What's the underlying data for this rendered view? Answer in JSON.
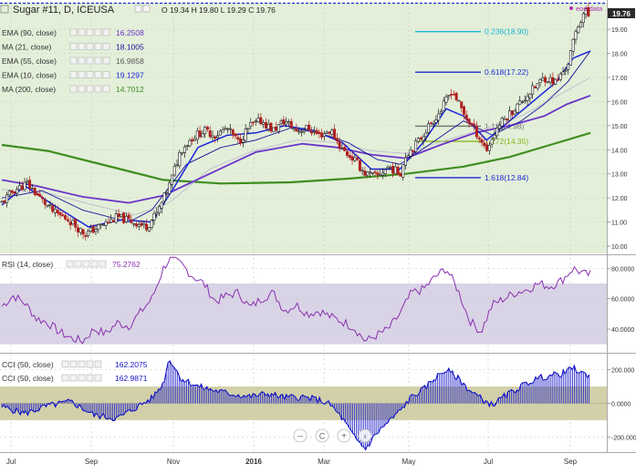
{
  "header": {
    "symbol_title": "Sugar #11, D, ICEUSA",
    "ohlc": "O 19.34  H 19.80  L 19.29  C 19.76",
    "eod_label": "eod data",
    "last_price": "19.76"
  },
  "colors": {
    "price_bg": "#e3efd9",
    "osc_bg": "#ffffff",
    "rsi_band": "#d9d3e6",
    "cci_band": "#d2d0a8",
    "ema90": "#6b35c9",
    "ma21": "#15149b",
    "ema55": "#c2bfcd",
    "ema10": "#1a25d8",
    "ma200": "#3f8e1f",
    "rsi_line": "#8a31b0",
    "cci_line": "#1414c8",
    "candle_up": "#1a1a1a",
    "candle_down": "#b02020",
    "fib_blue": "#1c2bd4",
    "fib_cyan": "#1cb3d4",
    "fib_gray": "#7a7a7a",
    "fib_lime": "#86b61d",
    "last_price_bg": "#2a2a2a"
  },
  "indicators": [
    {
      "name": "EMA (90, close)",
      "value": "16.2508",
      "color": "#6b35c9"
    },
    {
      "name": "MA (21, close)",
      "value": "18.1005",
      "color": "#15149b"
    },
    {
      "name": "EMA (55, close)",
      "value": "16.9858",
      "color": "#5a5a5a"
    },
    {
      "name": "EMA (10, close)",
      "value": "19.1297",
      "color": "#1a25d8"
    },
    {
      "name": "MA (200, close)",
      "value": "14.7012",
      "color": "#3f8e1f"
    }
  ],
  "rsi_panel": {
    "name": "RSI (14, close)",
    "value": "75.2762"
  },
  "cci_panel": [
    {
      "name": "CCI (50, close)",
      "value": "162.2075"
    },
    {
      "name": "CCI (50, close)",
      "value": "162.9871"
    }
  ],
  "zoom_buttons": [
    "–",
    "C",
    "+",
    "›"
  ],
  "chart_data": [
    {
      "type": "line",
      "ylim": [
        9.7,
        20.1
      ],
      "x": [
        "Jul",
        "Sep",
        "Nov",
        "2016",
        "Mar",
        "May",
        "Jul",
        "Sep"
      ],
      "y_ticks": [
        10,
        11,
        12,
        13,
        14,
        15,
        16,
        17,
        18,
        19
      ],
      "y_tick_labels": [
        "10.00",
        "11.00",
        "12.00",
        "13.00",
        "14.00",
        "15.00",
        "16.00",
        "17.00",
        "18.00",
        "19.00"
      ],
      "price_path": [
        [
          0,
          11.8
        ],
        [
          10,
          12.3
        ],
        [
          22,
          12.6
        ],
        [
          33,
          12.0
        ],
        [
          45,
          11.4
        ],
        [
          58,
          11.1
        ],
        [
          72,
          10.5
        ],
        [
          88,
          10.9
        ],
        [
          100,
          11.2
        ],
        [
          115,
          11.0
        ],
        [
          125,
          10.8
        ],
        [
          135,
          11.4
        ],
        [
          145,
          12.5
        ],
        [
          155,
          14.0
        ],
        [
          165,
          14.5
        ],
        [
          175,
          14.8
        ],
        [
          185,
          14.6
        ],
        [
          195,
          14.9
        ],
        [
          205,
          14.3
        ],
        [
          215,
          15.0
        ],
        [
          225,
          15.2
        ],
        [
          235,
          14.8
        ],
        [
          245,
          15.2
        ],
        [
          255,
          14.8
        ],
        [
          265,
          14.9
        ],
        [
          275,
          14.6
        ],
        [
          285,
          14.8
        ],
        [
          295,
          14.0
        ],
        [
          305,
          13.6
        ],
        [
          315,
          13.0
        ],
        [
          325,
          12.9
        ],
        [
          335,
          13.3
        ],
        [
          345,
          13.0
        ],
        [
          350,
          13.8
        ],
        [
          360,
          14.3
        ],
        [
          370,
          15.0
        ],
        [
          380,
          15.6
        ],
        [
          390,
          16.5
        ],
        [
          400,
          15.5
        ],
        [
          410,
          14.8
        ],
        [
          420,
          14.0
        ],
        [
          430,
          15.0
        ],
        [
          440,
          15.5
        ],
        [
          450,
          16.0
        ],
        [
          460,
          16.5
        ],
        [
          470,
          17.0
        ],
        [
          480,
          16.8
        ],
        [
          490,
          17.5
        ],
        [
          498,
          19.0
        ],
        [
          505,
          19.8
        ],
        [
          510,
          19.4
        ]
      ],
      "series": [
        {
          "name": "EMA (90, close)",
          "values": [
            [
              0,
              12.75
            ],
            [
              30,
              12.5
            ],
            [
              70,
              12.05
            ],
            [
              110,
              11.8
            ],
            [
              140,
              12.1
            ],
            [
              180,
              13.0
            ],
            [
              220,
              13.9
            ],
            [
              260,
              14.25
            ],
            [
              290,
              14.1
            ],
            [
              320,
              13.8
            ],
            [
              350,
              13.65
            ],
            [
              380,
              14.2
            ],
            [
              410,
              14.7
            ],
            [
              440,
              15.0
            ],
            [
              470,
              15.4
            ],
            [
              490,
              15.9
            ],
            [
              510,
              16.25
            ]
          ]
        },
        {
          "name": "MA (21, close)",
          "values": [
            [
              0,
              12.0
            ],
            [
              35,
              12.3
            ],
            [
              70,
              11.5
            ],
            [
              110,
              11.0
            ],
            [
              130,
              11.5
            ],
            [
              160,
              13.4
            ],
            [
              190,
              14.1
            ],
            [
              220,
              14.4
            ],
            [
              250,
              14.9
            ],
            [
              275,
              14.7
            ],
            [
              300,
              14.3
            ],
            [
              325,
              13.6
            ],
            [
              345,
              13.4
            ],
            [
              370,
              14.2
            ],
            [
              400,
              15.2
            ],
            [
              425,
              14.6
            ],
            [
              450,
              15.2
            ],
            [
              470,
              15.9
            ],
            [
              490,
              16.8
            ],
            [
              510,
              18.1
            ]
          ]
        },
        {
          "name": "EMA (55, close)",
          "values": [
            [
              0,
              12.35
            ],
            [
              40,
              12.2
            ],
            [
              80,
              11.7
            ],
            [
              115,
              11.3
            ],
            [
              145,
              11.8
            ],
            [
              180,
              13.2
            ],
            [
              215,
              13.9
            ],
            [
              255,
              14.4
            ],
            [
              290,
              14.3
            ],
            [
              320,
              13.95
            ],
            [
              350,
              13.85
            ],
            [
              385,
              14.4
            ],
            [
              420,
              14.9
            ],
            [
              450,
              15.4
            ],
            [
              480,
              16.2
            ],
            [
              510,
              17.0
            ]
          ]
        },
        {
          "name": "EMA (10, close)",
          "values": [
            [
              0,
              11.7
            ],
            [
              20,
              12.5
            ],
            [
              45,
              11.7
            ],
            [
              75,
              10.8
            ],
            [
              105,
              11.1
            ],
            [
              130,
              11.0
            ],
            [
              150,
              12.5
            ],
            [
              170,
              14.1
            ],
            [
              195,
              14.6
            ],
            [
              220,
              14.7
            ],
            [
              245,
              15.0
            ],
            [
              270,
              14.8
            ],
            [
              295,
              14.3
            ],
            [
              320,
              13.2
            ],
            [
              345,
              13.2
            ],
            [
              365,
              14.3
            ],
            [
              385,
              15.7
            ],
            [
              400,
              15.4
            ],
            [
              420,
              14.4
            ],
            [
              440,
              15.2
            ],
            [
              460,
              16.0
            ],
            [
              480,
              16.8
            ],
            [
              495,
              17.8
            ],
            [
              510,
              18.1
            ]
          ]
        },
        {
          "name": "MA (200, close)",
          "values": [
            [
              0,
              14.2
            ],
            [
              40,
              13.95
            ],
            [
              90,
              13.35
            ],
            [
              140,
              12.75
            ],
            [
              190,
              12.6
            ],
            [
              250,
              12.65
            ],
            [
              300,
              12.8
            ],
            [
              350,
              13.0
            ],
            [
              400,
              13.3
            ],
            [
              440,
              13.7
            ],
            [
              475,
              14.2
            ],
            [
              510,
              14.7
            ]
          ]
        }
      ],
      "fib_levels": [
        {
          "label": "0.236(18.90)",
          "value": 18.9,
          "color": "#1cb3d4"
        },
        {
          "label": "0.618(17.22)",
          "value": 17.22,
          "color": "#1c2bd4"
        },
        {
          "label": "1.13(14.98)",
          "value": 14.98,
          "color": "#7a7a7a"
        },
        {
          "label": "1.272(14.35)",
          "value": 14.35,
          "color": "#86b61d"
        },
        {
          "label": "1.618(12.84)",
          "value": 12.84,
          "color": "#1c2bd4"
        }
      ]
    },
    {
      "type": "line",
      "ylim": [
        25,
        88
      ],
      "y_ticks": [
        40,
        60,
        80
      ],
      "y_tick_labels": [
        "40.0000",
        "60.0000",
        "80.0000"
      ],
      "band": [
        30,
        70
      ],
      "values": [
        [
          0,
          55
        ],
        [
          10,
          62
        ],
        [
          20,
          57
        ],
        [
          30,
          47
        ],
        [
          40,
          44
        ],
        [
          50,
          38
        ],
        [
          60,
          34
        ],
        [
          70,
          32
        ],
        [
          80,
          40
        ],
        [
          90,
          37
        ],
        [
          100,
          44
        ],
        [
          110,
          42
        ],
        [
          120,
          51
        ],
        [
          130,
          60
        ],
        [
          140,
          80
        ],
        [
          145,
          86
        ],
        [
          155,
          83
        ],
        [
          165,
          75
        ],
        [
          175,
          70
        ],
        [
          185,
          58
        ],
        [
          195,
          62
        ],
        [
          205,
          64
        ],
        [
          215,
          54
        ],
        [
          225,
          60
        ],
        [
          235,
          64
        ],
        [
          245,
          52
        ],
        [
          255,
          56
        ],
        [
          265,
          50
        ],
        [
          275,
          52
        ],
        [
          285,
          48
        ],
        [
          295,
          45
        ],
        [
          305,
          41
        ],
        [
          315,
          32
        ],
        [
          325,
          36
        ],
        [
          335,
          40
        ],
        [
          345,
          50
        ],
        [
          355,
          64
        ],
        [
          365,
          66
        ],
        [
          375,
          74
        ],
        [
          385,
          80
        ],
        [
          395,
          66
        ],
        [
          405,
          46
        ],
        [
          415,
          38
        ],
        [
          425,
          56
        ],
        [
          435,
          60
        ],
        [
          445,
          64
        ],
        [
          455,
          66
        ],
        [
          465,
          70
        ],
        [
          475,
          68
        ],
        [
          485,
          72
        ],
        [
          495,
          80
        ],
        [
          505,
          76
        ]
      ]
    },
    {
      "type": "bar",
      "ylim": [
        -290,
        290
      ],
      "y_ticks": [
        -200,
        0,
        200
      ],
      "y_tick_labels": [
        "-200.000",
        "0.0000",
        "200.000"
      ],
      "band": [
        -100,
        100
      ],
      "values": [
        [
          0,
          -20
        ],
        [
          20,
          -60
        ],
        [
          40,
          -15
        ],
        [
          60,
          10
        ],
        [
          80,
          -70
        ],
        [
          100,
          -90
        ],
        [
          115,
          -30
        ],
        [
          130,
          30
        ],
        [
          140,
          120
        ],
        [
          145,
          270
        ],
        [
          155,
          150
        ],
        [
          170,
          100
        ],
        [
          185,
          75
        ],
        [
          200,
          55
        ],
        [
          215,
          40
        ],
        [
          230,
          58
        ],
        [
          245,
          35
        ],
        [
          260,
          38
        ],
        [
          275,
          20
        ],
        [
          285,
          -10
        ],
        [
          295,
          -90
        ],
        [
          305,
          -200
        ],
        [
          315,
          -270
        ],
        [
          325,
          -175
        ],
        [
          335,
          -110
        ],
        [
          345,
          -45
        ],
        [
          355,
          40
        ],
        [
          365,
          80
        ],
        [
          375,
          150
        ],
        [
          385,
          200
        ],
        [
          395,
          150
        ],
        [
          405,
          80
        ],
        [
          415,
          30
        ],
        [
          425,
          -10
        ],
        [
          435,
          40
        ],
        [
          445,
          80
        ],
        [
          455,
          120
        ],
        [
          465,
          150
        ],
        [
          475,
          165
        ],
        [
          485,
          175
        ],
        [
          495,
          210
        ],
        [
          505,
          170
        ]
      ]
    }
  ]
}
